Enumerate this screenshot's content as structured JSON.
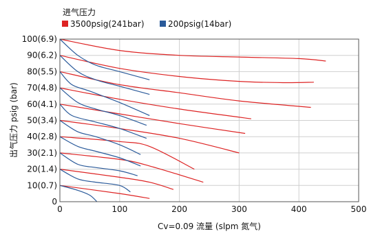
{
  "chart_data": {
    "type": "line",
    "legend_title": "进气压力",
    "legend_placement": "top-left",
    "xlabel": "Cv=0.09 流量 (slpm 氮气)",
    "ylabel": "出气压力 psig (bar)",
    "xlim": [
      0,
      500
    ],
    "ylim": [
      0,
      100
    ],
    "x_ticks": [
      0,
      100,
      200,
      300,
      400,
      500
    ],
    "y_ticks": [
      0,
      10,
      20,
      30,
      40,
      50,
      60,
      70,
      80,
      90,
      100
    ],
    "y_tick_labels": [
      "0",
      "10(0.7)",
      "20(1.4)",
      "30(2.1)",
      "40(2.8)",
      "50(3.4)",
      "60(4.1)",
      "70(4.8)",
      "80(5.5)",
      "90(6.2)",
      "100(6.9)"
    ],
    "grid": true,
    "colors": {
      "red": "#dd2222",
      "blue": "#2a5a9a"
    },
    "series": [
      {
        "name": "3500psig(241bar)",
        "color": "#dd2222",
        "curves": [
          [
            [
              0,
              100
            ],
            [
              100,
              93
            ],
            [
              200,
              90
            ],
            [
              300,
              89
            ],
            [
              400,
              88
            ],
            [
              445,
              86.5
            ]
          ],
          [
            [
              0,
              90
            ],
            [
              100,
              82
            ],
            [
              200,
              77
            ],
            [
              300,
              74
            ],
            [
              375,
              73.2
            ],
            [
              425,
              73.5
            ]
          ],
          [
            [
              0,
              80
            ],
            [
              100,
              72
            ],
            [
              200,
              67
            ],
            [
              300,
              62
            ],
            [
              420,
              58
            ]
          ],
          [
            [
              0,
              70
            ],
            [
              100,
              63
            ],
            [
              200,
              57
            ],
            [
              320,
              51
            ]
          ],
          [
            [
              0,
              60
            ],
            [
              100,
              54
            ],
            [
              200,
              48
            ],
            [
              310,
              42
            ]
          ],
          [
            [
              0,
              50
            ],
            [
              100,
              45
            ],
            [
              200,
              39
            ],
            [
              300,
              30
            ]
          ],
          [
            [
              0,
              40
            ],
            [
              100,
              37
            ],
            [
              150,
              34
            ],
            [
              225,
              20
            ]
          ],
          [
            [
              0,
              30
            ],
            [
              100,
              26
            ],
            [
              150,
              22
            ],
            [
              240,
              12
            ]
          ],
          [
            [
              0,
              20
            ],
            [
              100,
              15
            ],
            [
              150,
              12
            ],
            [
              190,
              7.5
            ]
          ],
          [
            [
              0,
              10
            ],
            [
              100,
              5
            ],
            [
              150,
              2
            ]
          ]
        ]
      },
      {
        "name": "200psig(14bar)",
        "color": "#2a5a9a",
        "curves": [
          [
            [
              0,
              100
            ],
            [
              30,
              90
            ],
            [
              60,
              84
            ],
            [
              100,
              80
            ],
            [
              150,
              75
            ]
          ],
          [
            [
              0,
              90
            ],
            [
              30,
              80
            ],
            [
              60,
              75
            ],
            [
              100,
              71
            ],
            [
              150,
              66
            ]
          ],
          [
            [
              0,
              80
            ],
            [
              20,
              72
            ],
            [
              50,
              68
            ],
            [
              100,
              61
            ],
            [
              150,
              53
            ]
          ],
          [
            [
              0,
              70
            ],
            [
              30,
              61
            ],
            [
              60,
              57
            ],
            [
              100,
              53
            ],
            [
              145,
              47
            ]
          ],
          [
            [
              0,
              60
            ],
            [
              20,
              53
            ],
            [
              60,
              49
            ],
            [
              100,
              45
            ],
            [
              145,
              39
            ]
          ],
          [
            [
              0,
              50
            ],
            [
              30,
              43
            ],
            [
              60,
              40
            ],
            [
              100,
              35
            ],
            [
              135,
              29
            ]
          ],
          [
            [
              0,
              40
            ],
            [
              30,
              34
            ],
            [
              60,
              31
            ],
            [
              100,
              27
            ],
            [
              135,
              22
            ]
          ],
          [
            [
              0,
              30
            ],
            [
              30,
              23
            ],
            [
              60,
              21
            ],
            [
              100,
              19
            ],
            [
              130,
              16
            ]
          ],
          [
            [
              0,
              20
            ],
            [
              30,
              14
            ],
            [
              60,
              12
            ],
            [
              100,
              10
            ],
            [
              118,
              6
            ]
          ],
          [
            [
              0,
              10
            ],
            [
              30,
              7
            ],
            [
              50,
              4
            ],
            [
              62,
              0
            ]
          ]
        ]
      }
    ]
  }
}
